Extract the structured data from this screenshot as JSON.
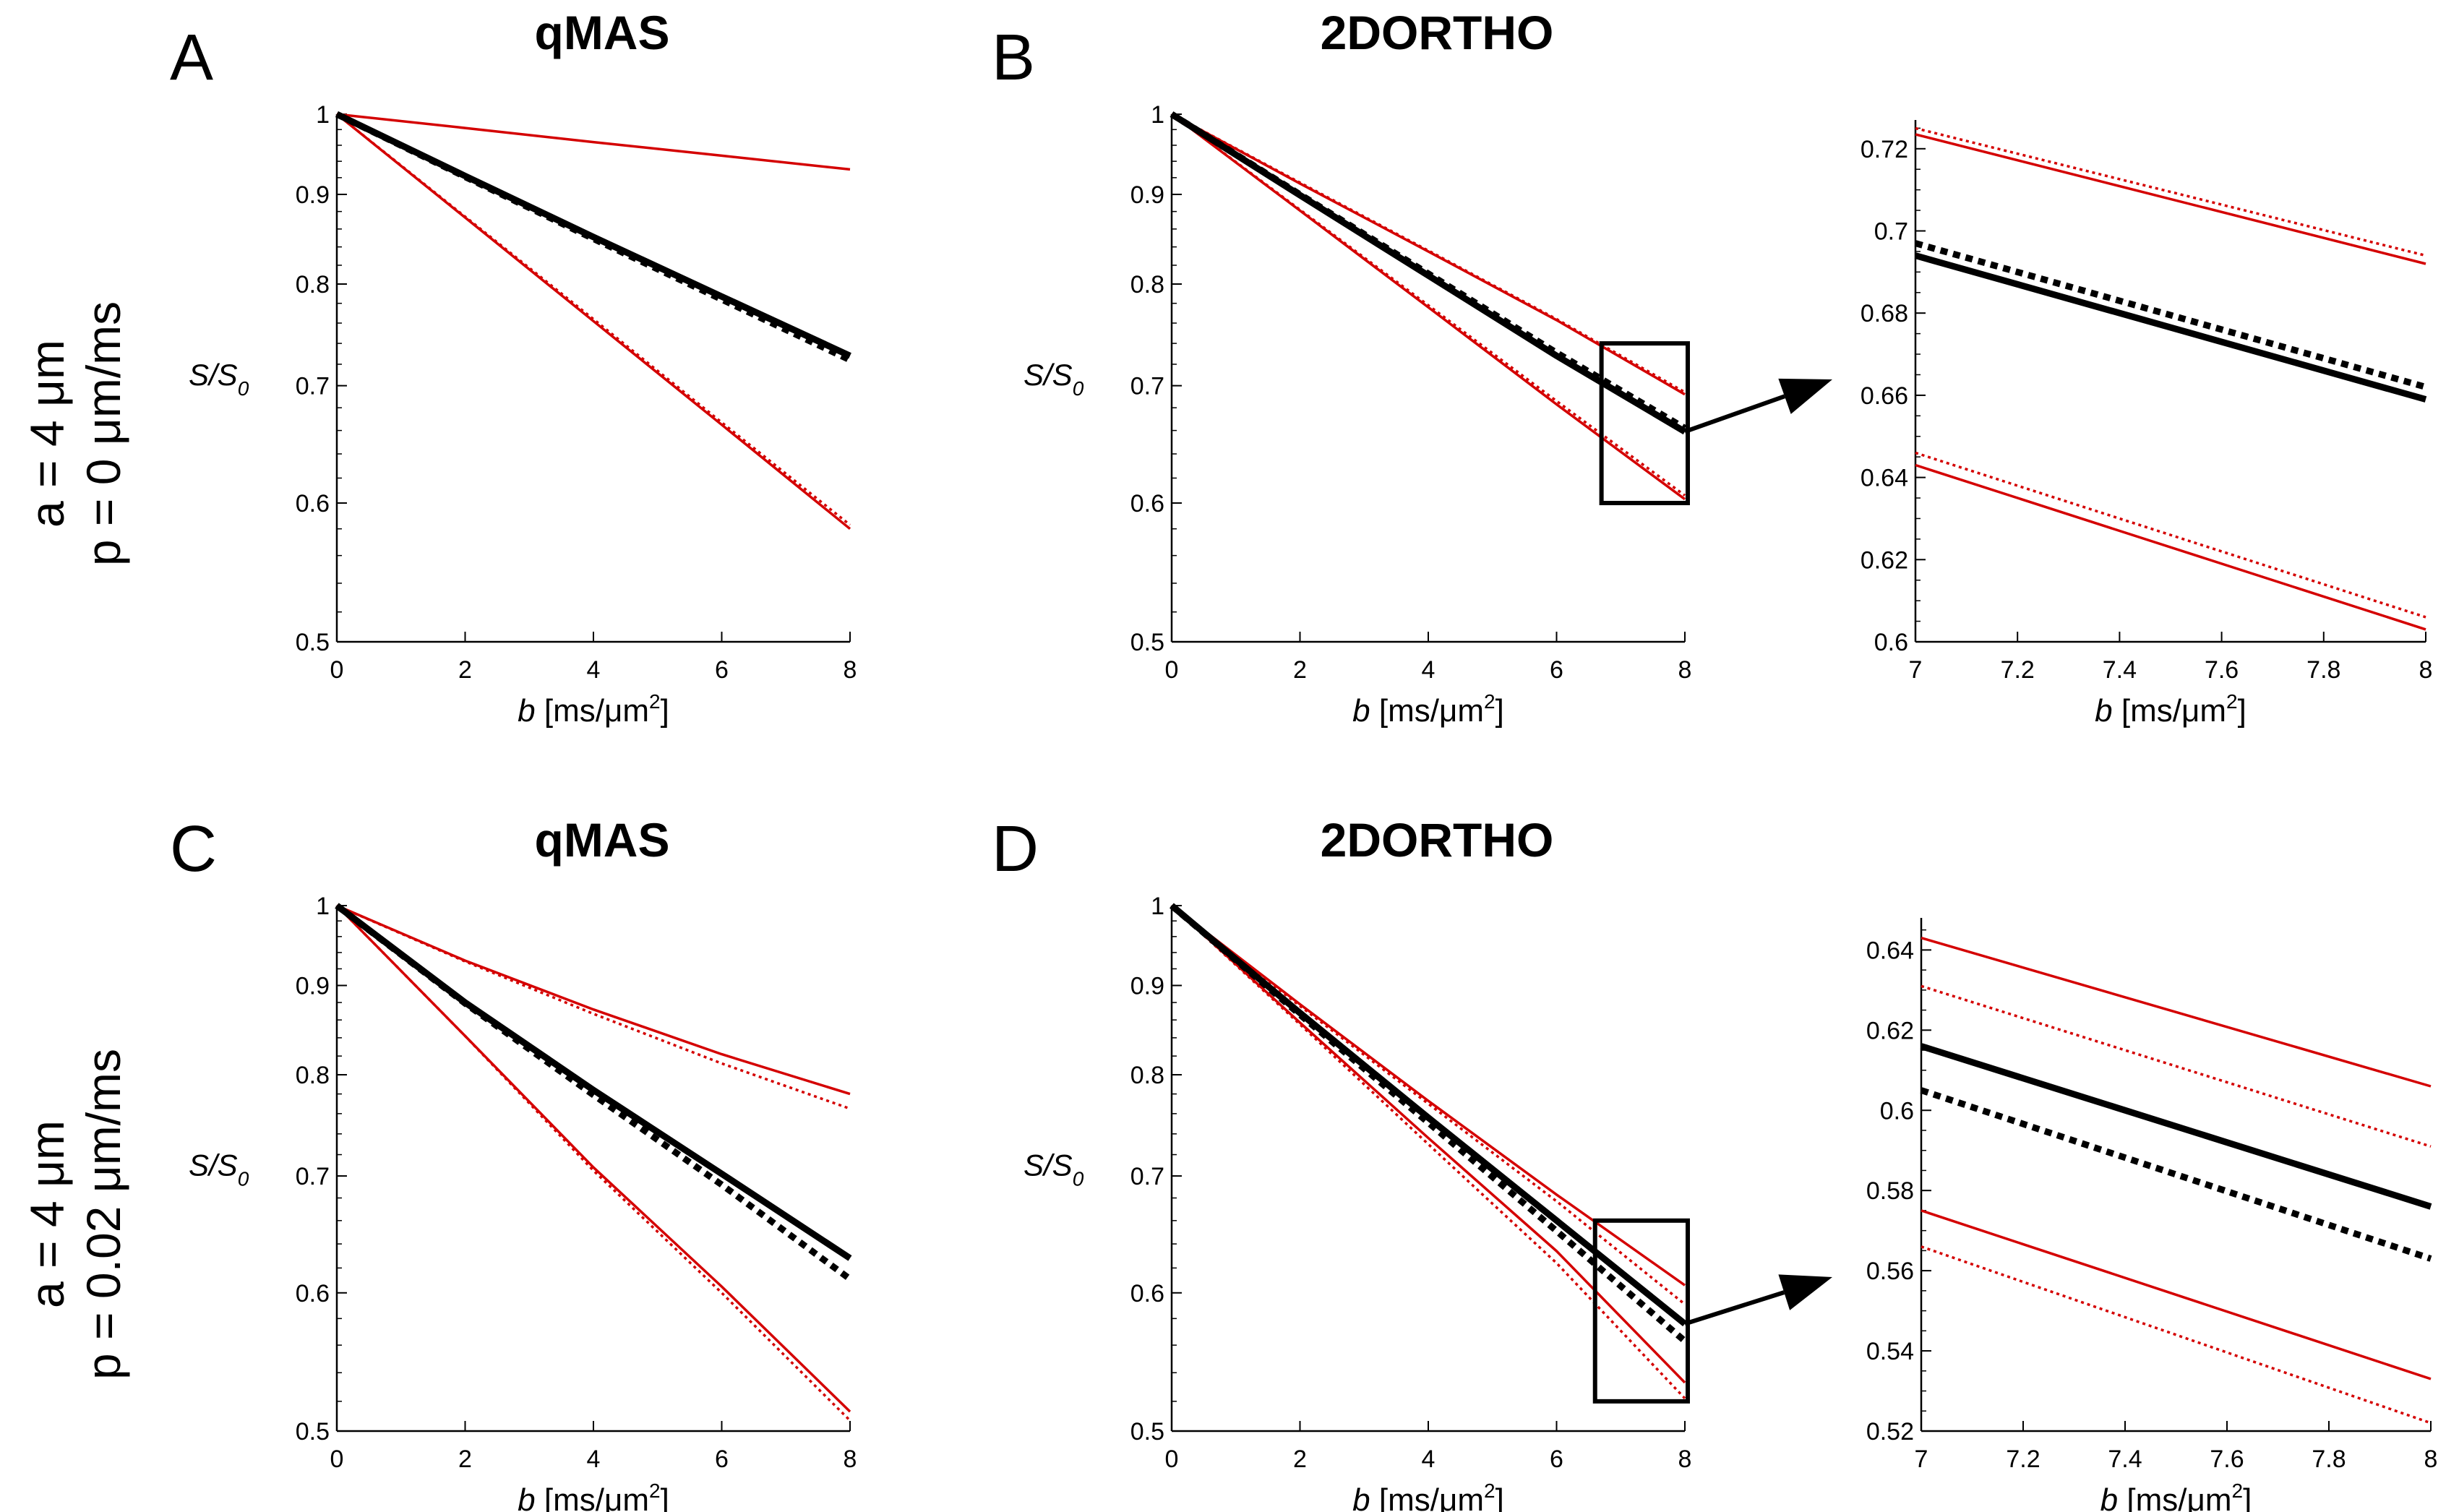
{
  "figure": {
    "row_labels": [
      {
        "a": "a = 4 μm",
        "p": "p = 0 μm/ms"
      },
      {
        "a": "a = 4 μm",
        "p": "p = 0.02 μm/ms"
      }
    ],
    "xlabel": {
      "var": "b",
      "unit_pre": " [ms/μm",
      "sup": "2",
      "unit_post": "]"
    },
    "ylabel": {
      "var": "S/S",
      "sub": "0"
    }
  },
  "colors": {
    "model": "#d40000",
    "mean": "#000000",
    "axis": "#000000"
  },
  "chart_data": [
    {
      "id": "A",
      "letter": "A",
      "title": "qMAS",
      "type": "line",
      "scale_y": "log",
      "xlim": [
        0,
        8
      ],
      "ylim": [
        0.5,
        1
      ],
      "xticks": [
        0,
        2,
        4,
        6,
        8
      ],
      "xtick_labels": [
        "0",
        "2",
        "4",
        "6",
        "8"
      ],
      "yticks": [
        0.5,
        0.6,
        0.7,
        0.8,
        0.9,
        1
      ],
      "ytick_labels": [
        "0.5",
        "0.6",
        "0.7",
        "0.8",
        "0.9",
        "1"
      ],
      "series": [
        {
          "name": "upper-solid",
          "color": "red",
          "style": "solid",
          "x": [
            0,
            2,
            4,
            6,
            8
          ],
          "y": [
            1,
            0.982,
            0.964,
            0.947,
            0.93
          ]
        },
        {
          "name": "lower-solid",
          "color": "red",
          "style": "solid",
          "x": [
            0,
            2,
            4,
            6,
            8
          ],
          "y": [
            1,
            0.873,
            0.762,
            0.665,
            0.58
          ]
        },
        {
          "name": "lower-dotted",
          "color": "red",
          "style": "dotted",
          "x": [
            0,
            2,
            4,
            6,
            8
          ],
          "y": [
            1,
            0.874,
            0.764,
            0.667,
            0.583
          ]
        },
        {
          "name": "mean-solid",
          "color": "black",
          "style": "solid",
          "x": [
            0,
            2,
            4,
            6,
            8
          ],
          "y": [
            1,
            0.922,
            0.851,
            0.787,
            0.728
          ]
        },
        {
          "name": "mean-dotted",
          "color": "black",
          "style": "dotted",
          "x": [
            0,
            2,
            4,
            6,
            8
          ],
          "y": [
            1,
            0.921,
            0.849,
            0.784,
            0.724
          ]
        }
      ]
    },
    {
      "id": "B",
      "letter": "B",
      "title": "2DORTHO",
      "type": "line",
      "scale_y": "log",
      "xlim": [
        0,
        8
      ],
      "ylim": [
        0.5,
        1
      ],
      "xticks": [
        0,
        2,
        4,
        6,
        8
      ],
      "xtick_labels": [
        "0",
        "2",
        "4",
        "6",
        "8"
      ],
      "yticks": [
        0.5,
        0.6,
        0.7,
        0.8,
        0.9,
        1
      ],
      "ytick_labels": [
        "0.5",
        "0.6",
        "0.7",
        "0.8",
        "0.9",
        "1"
      ],
      "series": [
        {
          "name": "upper-solid",
          "color": "red",
          "style": "solid",
          "x": [
            0,
            2,
            4,
            6,
            8
          ],
          "y": [
            1,
            0.913,
            0.835,
            0.763,
            0.692
          ]
        },
        {
          "name": "upper-dotted",
          "color": "red",
          "style": "dotted",
          "x": [
            0,
            2,
            4,
            6,
            8
          ],
          "y": [
            1,
            0.914,
            0.836,
            0.764,
            0.694
          ]
        },
        {
          "name": "lower-solid",
          "color": "red",
          "style": "solid",
          "x": [
            0,
            2,
            4,
            6,
            8
          ],
          "y": [
            1,
            0.881,
            0.776,
            0.683,
            0.603
          ]
        },
        {
          "name": "lower-dotted",
          "color": "red",
          "style": "dotted",
          "x": [
            0,
            2,
            4,
            6,
            8
          ],
          "y": [
            1,
            0.882,
            0.778,
            0.686,
            0.606
          ]
        },
        {
          "name": "mean-solid",
          "color": "black",
          "style": "solid",
          "x": [
            0,
            2,
            4,
            6,
            8
          ],
          "y": [
            1,
            0.899,
            0.809,
            0.728,
            0.659
          ]
        },
        {
          "name": "mean-dotted",
          "color": "black",
          "style": "dotted",
          "x": [
            0,
            2,
            4,
            6,
            8
          ],
          "y": [
            1,
            0.9,
            0.811,
            0.731,
            0.662
          ]
        }
      ],
      "zoom_box": {
        "x": [
          6.7,
          8
        ],
        "y": [
          0.6,
          0.74
        ]
      }
    },
    {
      "id": "B-inset",
      "letter": "",
      "title": "",
      "type": "line",
      "scale_y": "linear",
      "xlim": [
        7,
        8
      ],
      "ylim": [
        0.6,
        0.727
      ],
      "xticks": [
        7,
        7.2,
        7.4,
        7.6,
        7.8,
        8
      ],
      "xtick_labels": [
        "7",
        "7.2",
        "7.4",
        "7.6",
        "7.8",
        "8"
      ],
      "yticks": [
        0.6,
        0.62,
        0.64,
        0.66,
        0.68,
        0.7,
        0.72
      ],
      "ytick_labels": [
        "0.6",
        "0.62",
        "0.64",
        "0.66",
        "0.68",
        "0.7",
        "0.72"
      ],
      "series": [
        {
          "name": "upper-solid",
          "color": "red",
          "style": "solid",
          "x": [
            7,
            8
          ],
          "y": [
            0.7235,
            0.692
          ]
        },
        {
          "name": "upper-dotted",
          "color": "red",
          "style": "dotted",
          "x": [
            7,
            8
          ],
          "y": [
            0.725,
            0.694
          ]
        },
        {
          "name": "lower-solid",
          "color": "red",
          "style": "solid",
          "x": [
            7,
            8
          ],
          "y": [
            0.643,
            0.603
          ]
        },
        {
          "name": "lower-dotted",
          "color": "red",
          "style": "dotted",
          "x": [
            7,
            8
          ],
          "y": [
            0.646,
            0.606
          ]
        },
        {
          "name": "mean-solid",
          "color": "black",
          "style": "solid",
          "x": [
            7,
            8
          ],
          "y": [
            0.694,
            0.659
          ]
        },
        {
          "name": "mean-dotted",
          "color": "black",
          "style": "dotted",
          "x": [
            7,
            8
          ],
          "y": [
            0.697,
            0.662
          ]
        }
      ]
    },
    {
      "id": "C",
      "letter": "C",
      "title": "qMAS",
      "type": "line",
      "scale_y": "log",
      "xlim": [
        0,
        8
      ],
      "ylim": [
        0.5,
        1
      ],
      "xticks": [
        0,
        2,
        4,
        6,
        8
      ],
      "xtick_labels": [
        "0",
        "2",
        "4",
        "6",
        "8"
      ],
      "yticks": [
        0.5,
        0.6,
        0.7,
        0.8,
        0.9,
        1
      ],
      "ytick_labels": [
        "0.5",
        "0.6",
        "0.7",
        "0.8",
        "0.9",
        "1"
      ],
      "series": [
        {
          "name": "upper-solid",
          "color": "red",
          "style": "solid",
          "x": [
            0,
            2,
            4,
            6,
            8
          ],
          "y": [
            1,
            0.93,
            0.872,
            0.822,
            0.78
          ]
        },
        {
          "name": "upper-dotted",
          "color": "red",
          "style": "dotted",
          "x": [
            0,
            2,
            4,
            6,
            8
          ],
          "y": [
            1,
            0.929,
            0.867,
            0.812,
            0.765
          ]
        },
        {
          "name": "lower-solid",
          "color": "red",
          "style": "solid",
          "x": [
            0,
            2,
            4,
            6,
            8
          ],
          "y": [
            1,
            0.842,
            0.708,
            0.605,
            0.513
          ]
        },
        {
          "name": "lower-dotted",
          "color": "red",
          "style": "dotted",
          "x": [
            0,
            2,
            4,
            6,
            8
          ],
          "y": [
            1,
            0.842,
            0.705,
            0.6,
            0.507
          ]
        },
        {
          "name": "mean-solid",
          "color": "black",
          "style": "solid",
          "x": [
            0,
            2,
            4,
            6,
            8
          ],
          "y": [
            1,
            0.88,
            0.784,
            0.702,
            0.628
          ]
        },
        {
          "name": "mean-dotted",
          "color": "black",
          "style": "dotted",
          "x": [
            0,
            2,
            4,
            6,
            8
          ],
          "y": [
            1,
            0.879,
            0.779,
            0.692,
            0.611
          ]
        }
      ]
    },
    {
      "id": "D",
      "letter": "D",
      "title": "2DORTHO",
      "type": "line",
      "scale_y": "log",
      "xlim": [
        0,
        8
      ],
      "ylim": [
        0.5,
        1
      ],
      "xticks": [
        0,
        2,
        4,
        6,
        8
      ],
      "xtick_labels": [
        "0",
        "2",
        "4",
        "6",
        "8"
      ],
      "yticks": [
        0.5,
        0.6,
        0.7,
        0.8,
        0.9,
        1
      ],
      "ytick_labels": [
        "0.5",
        "0.6",
        "0.7",
        "0.8",
        "0.9",
        "1"
      ],
      "series": [
        {
          "name": "upper-solid",
          "color": "red",
          "style": "solid",
          "x": [
            0,
            2,
            4,
            6,
            8
          ],
          "y": [
            1,
            0.878,
            0.773,
            0.683,
            0.606
          ]
        },
        {
          "name": "upper-dotted",
          "color": "red",
          "style": "dotted",
          "x": [
            0,
            2,
            4,
            6,
            8
          ],
          "y": [
            1,
            0.876,
            0.77,
            0.677,
            0.591
          ]
        },
        {
          "name": "lower-solid",
          "color": "red",
          "style": "solid",
          "x": [
            0,
            2,
            4,
            6,
            8
          ],
          "y": [
            1,
            0.857,
            0.736,
            0.634,
            0.533
          ]
        },
        {
          "name": "lower-dotted",
          "color": "red",
          "style": "dotted",
          "x": [
            0,
            2,
            4,
            6,
            8
          ],
          "y": [
            1,
            0.855,
            0.73,
            0.624,
            0.522
          ]
        },
        {
          "name": "mean-solid",
          "color": "black",
          "style": "solid",
          "x": [
            0,
            2,
            4,
            6,
            8
          ],
          "y": [
            1,
            0.868,
            0.756,
            0.66,
            0.576
          ]
        },
        {
          "name": "mean-dotted",
          "color": "black",
          "style": "dotted",
          "x": [
            0,
            2,
            4,
            6,
            8
          ],
          "y": [
            1,
            0.866,
            0.751,
            0.651,
            0.563
          ]
        }
      ],
      "zoom_box": {
        "x": [
          6.6,
          8
        ],
        "y": [
          0.52,
          0.66
        ]
      }
    },
    {
      "id": "D-inset",
      "letter": "",
      "title": "",
      "type": "line",
      "scale_y": "linear",
      "xlim": [
        7,
        8
      ],
      "ylim": [
        0.52,
        0.648
      ],
      "xticks": [
        7,
        7.2,
        7.4,
        7.6,
        7.8,
        8
      ],
      "xtick_labels": [
        "7",
        "7.2",
        "7.4",
        "7.6",
        "7.8",
        "8"
      ],
      "yticks": [
        0.52,
        0.54,
        0.56,
        0.58,
        0.6,
        0.62,
        0.64
      ],
      "ytick_labels": [
        "0.52",
        "0.54",
        "0.56",
        "0.58",
        "0.6",
        "0.62",
        "0.64"
      ],
      "series": [
        {
          "name": "upper-solid",
          "color": "red",
          "style": "solid",
          "x": [
            7,
            8
          ],
          "y": [
            0.643,
            0.606
          ]
        },
        {
          "name": "upper-dotted",
          "color": "red",
          "style": "dotted",
          "x": [
            7,
            8
          ],
          "y": [
            0.631,
            0.591
          ]
        },
        {
          "name": "lower-solid",
          "color": "red",
          "style": "solid",
          "x": [
            7,
            8
          ],
          "y": [
            0.575,
            0.533
          ]
        },
        {
          "name": "lower-dotted",
          "color": "red",
          "style": "dotted",
          "x": [
            7,
            8
          ],
          "y": [
            0.566,
            0.522
          ]
        },
        {
          "name": "mean-solid",
          "color": "black",
          "style": "solid",
          "x": [
            7,
            8
          ],
          "y": [
            0.616,
            0.576
          ]
        },
        {
          "name": "mean-dotted",
          "color": "black",
          "style": "dotted",
          "x": [
            7,
            8
          ],
          "y": [
            0.605,
            0.563
          ]
        }
      ]
    }
  ]
}
